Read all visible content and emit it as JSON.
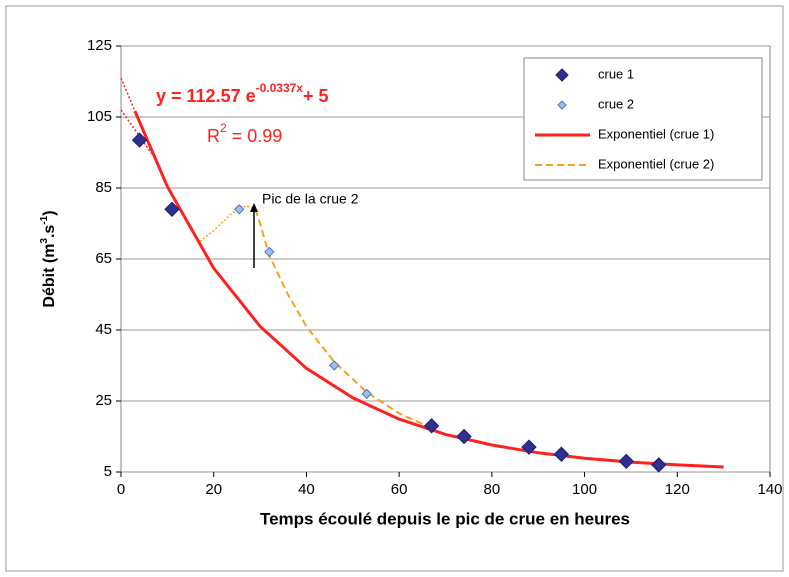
{
  "chart_data": {
    "type": "scatter",
    "xlabel": "Temps écoulé depuis le pic de crue en heures",
    "ylabel": {
      "a": "Débit (m",
      "b": "3",
      "c": ".s",
      "d": "-1",
      "e": ")"
    },
    "equation": {
      "a": "y = 112.57 e",
      "b": "-0.0337x",
      "c": "+ 5"
    },
    "r2": {
      "a": "R",
      "b": "2",
      "c": " = 0.99"
    },
    "annotation": "Pic de la crue 2",
    "xlim": [
      0,
      140
    ],
    "xticks": [
      0,
      20,
      40,
      60,
      80,
      100,
      120,
      140
    ],
    "ylim": [
      5,
      125
    ],
    "yticks": [
      5,
      25,
      45,
      65,
      85,
      105,
      125
    ],
    "grid": true,
    "series": [
      {
        "name": "crue 1",
        "kind": "points",
        "color": "#2e3192",
        "x": [
          4,
          11,
          67,
          74,
          88,
          95,
          109,
          116
        ],
        "values": [
          98.5,
          79,
          18,
          15,
          12,
          10,
          8,
          7
        ]
      },
      {
        "name": "crue 2",
        "kind": "points",
        "color": "#9dbfea",
        "x": [
          25.5,
          32,
          46,
          53
        ],
        "values": [
          79,
          67,
          35,
          27
        ]
      },
      {
        "name": "Exponentiel (crue 1)",
        "kind": "line",
        "color": "#ff2020",
        "x": [
          3,
          10,
          20,
          30,
          40,
          50,
          60,
          70,
          80,
          90,
          100,
          110,
          120,
          130
        ],
        "values": [
          106.7,
          85.4,
          62.4,
          46,
          34.2,
          25.9,
          19.9,
          15.6,
          12.6,
          10.4,
          8.9,
          7.8,
          7,
          6.4
        ]
      },
      {
        "name": "Exponentiel (crue 2)",
        "kind": "dashed",
        "color": "#f5a020",
        "x": [
          29,
          30,
          32,
          36,
          40,
          46,
          53,
          60,
          66
        ],
        "values": [
          79,
          75,
          66,
          55,
          46,
          36,
          27.5,
          21.5,
          18
        ]
      }
    ],
    "extensions": [
      {
        "color": "#ff2020",
        "x": [
          0,
          3
        ],
        "values": [
          116,
          106.7
        ]
      },
      {
        "color": "#ff2020",
        "x": [
          0,
          7
        ],
        "values": [
          107,
          94
        ]
      },
      {
        "color": "#f5a020",
        "x": [
          17,
          20,
          24,
          27,
          29
        ],
        "values": [
          70,
          73,
          78,
          80,
          79
        ]
      }
    ],
    "legend": "top-right"
  }
}
